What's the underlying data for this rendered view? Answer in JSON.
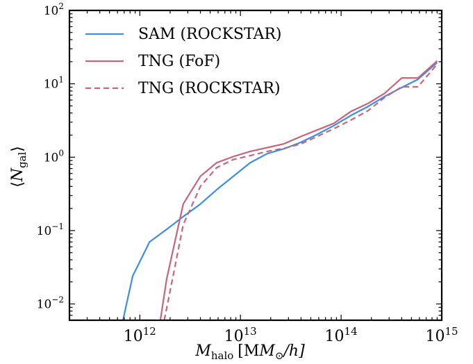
{
  "chart_data": {
    "type": "line",
    "xlabel": {
      "main": "M",
      "sub": "halo",
      "units": "[M",
      "units_sub": "⊙",
      "units_end": "/h]"
    },
    "ylabel": {
      "left": "⟨",
      "main": "N",
      "sub": "gal",
      "right": "⟩"
    },
    "xscale": "log",
    "yscale": "log",
    "xlim": [
      200000000000.0,
      1000000000000000.0
    ],
    "ylim": [
      0.006,
      100
    ],
    "x_ticks": [
      {
        "value": 1000000000000.0,
        "base": "10",
        "exp": "12"
      },
      {
        "value": 10000000000000.0,
        "base": "10",
        "exp": "13"
      },
      {
        "value": 100000000000000.0,
        "base": "10",
        "exp": "14"
      },
      {
        "value": 1000000000000000.0,
        "base": "10",
        "exp": "15"
      }
    ],
    "y_ticks": [
      {
        "value": 0.01,
        "base": "10",
        "exp": "−2"
      },
      {
        "value": 0.1,
        "base": "10",
        "exp": "−1"
      },
      {
        "value": 1,
        "base": "10",
        "exp": "0"
      },
      {
        "value": 10,
        "base": "10",
        "exp": "1"
      },
      {
        "value": 100,
        "base": "10",
        "exp": "2"
      }
    ],
    "grid": false,
    "legend_position": "upper-left",
    "series": [
      {
        "name": "SAM (ROCKSTAR)",
        "color": "#3a8ee6",
        "dash": "solid",
        "x": [
          680000000000.0,
          850000000000.0,
          1250000000000.0,
          1850000000000.0,
          2700000000000.0,
          4000000000000.0,
          5800000000000.0,
          8500000000000.0,
          12500000000000.0,
          18500000000000.0,
          27000000000000.0,
          40000000000000.0,
          58000000000000.0,
          85000000000000.0,
          125000000000000.0,
          185000000000000.0,
          270000000000000.0,
          400000000000000.0,
          580000000000000.0,
          900000000000000.0
        ],
        "y": [
          0.006,
          0.024,
          0.07,
          0.104,
          0.155,
          0.23,
          0.36,
          0.55,
          0.84,
          1.12,
          1.3,
          1.6,
          2.05,
          2.7,
          3.7,
          4.9,
          6.7,
          8.9,
          11.5,
          19.5
        ]
      },
      {
        "name": "TNG (FoF)",
        "color": "#c86478",
        "dash": "solid",
        "x": [
          1600000000000.0,
          1850000000000.0,
          2700000000000.0,
          4000000000000.0,
          5800000000000.0,
          8500000000000.0,
          12500000000000.0,
          18500000000000.0,
          27000000000000.0,
          40000000000000.0,
          58000000000000.0,
          85000000000000.0,
          125000000000000.0,
          185000000000000.0,
          270000000000000.0,
          400000000000000.0,
          580000000000000.0,
          900000000000000.0
        ],
        "y": [
          0.006,
          0.022,
          0.23,
          0.55,
          0.84,
          1.02,
          1.2,
          1.35,
          1.52,
          1.92,
          2.35,
          2.9,
          4.2,
          5.4,
          7.4,
          12,
          12,
          20.5
        ]
      },
      {
        "name": "TNG (ROCKSTAR)",
        "color": "#c86478",
        "dash": "dashed",
        "x": [
          1750000000000.0,
          2000000000000.0,
          2700000000000.0,
          4000000000000.0,
          5800000000000.0,
          8500000000000.0,
          12500000000000.0,
          18500000000000.0,
          27000000000000.0,
          40000000000000.0,
          58000000000000.0,
          85000000000000.0,
          125000000000000.0,
          185000000000000.0,
          270000000000000.0,
          400000000000000.0,
          580000000000000.0,
          900000000000000.0
        ],
        "y": [
          0.006,
          0.015,
          0.12,
          0.4,
          0.72,
          0.93,
          1.05,
          1.2,
          1.32,
          1.52,
          1.92,
          2.45,
          3.2,
          4.3,
          6.5,
          9.1,
          9.1,
          18.5
        ]
      }
    ]
  }
}
